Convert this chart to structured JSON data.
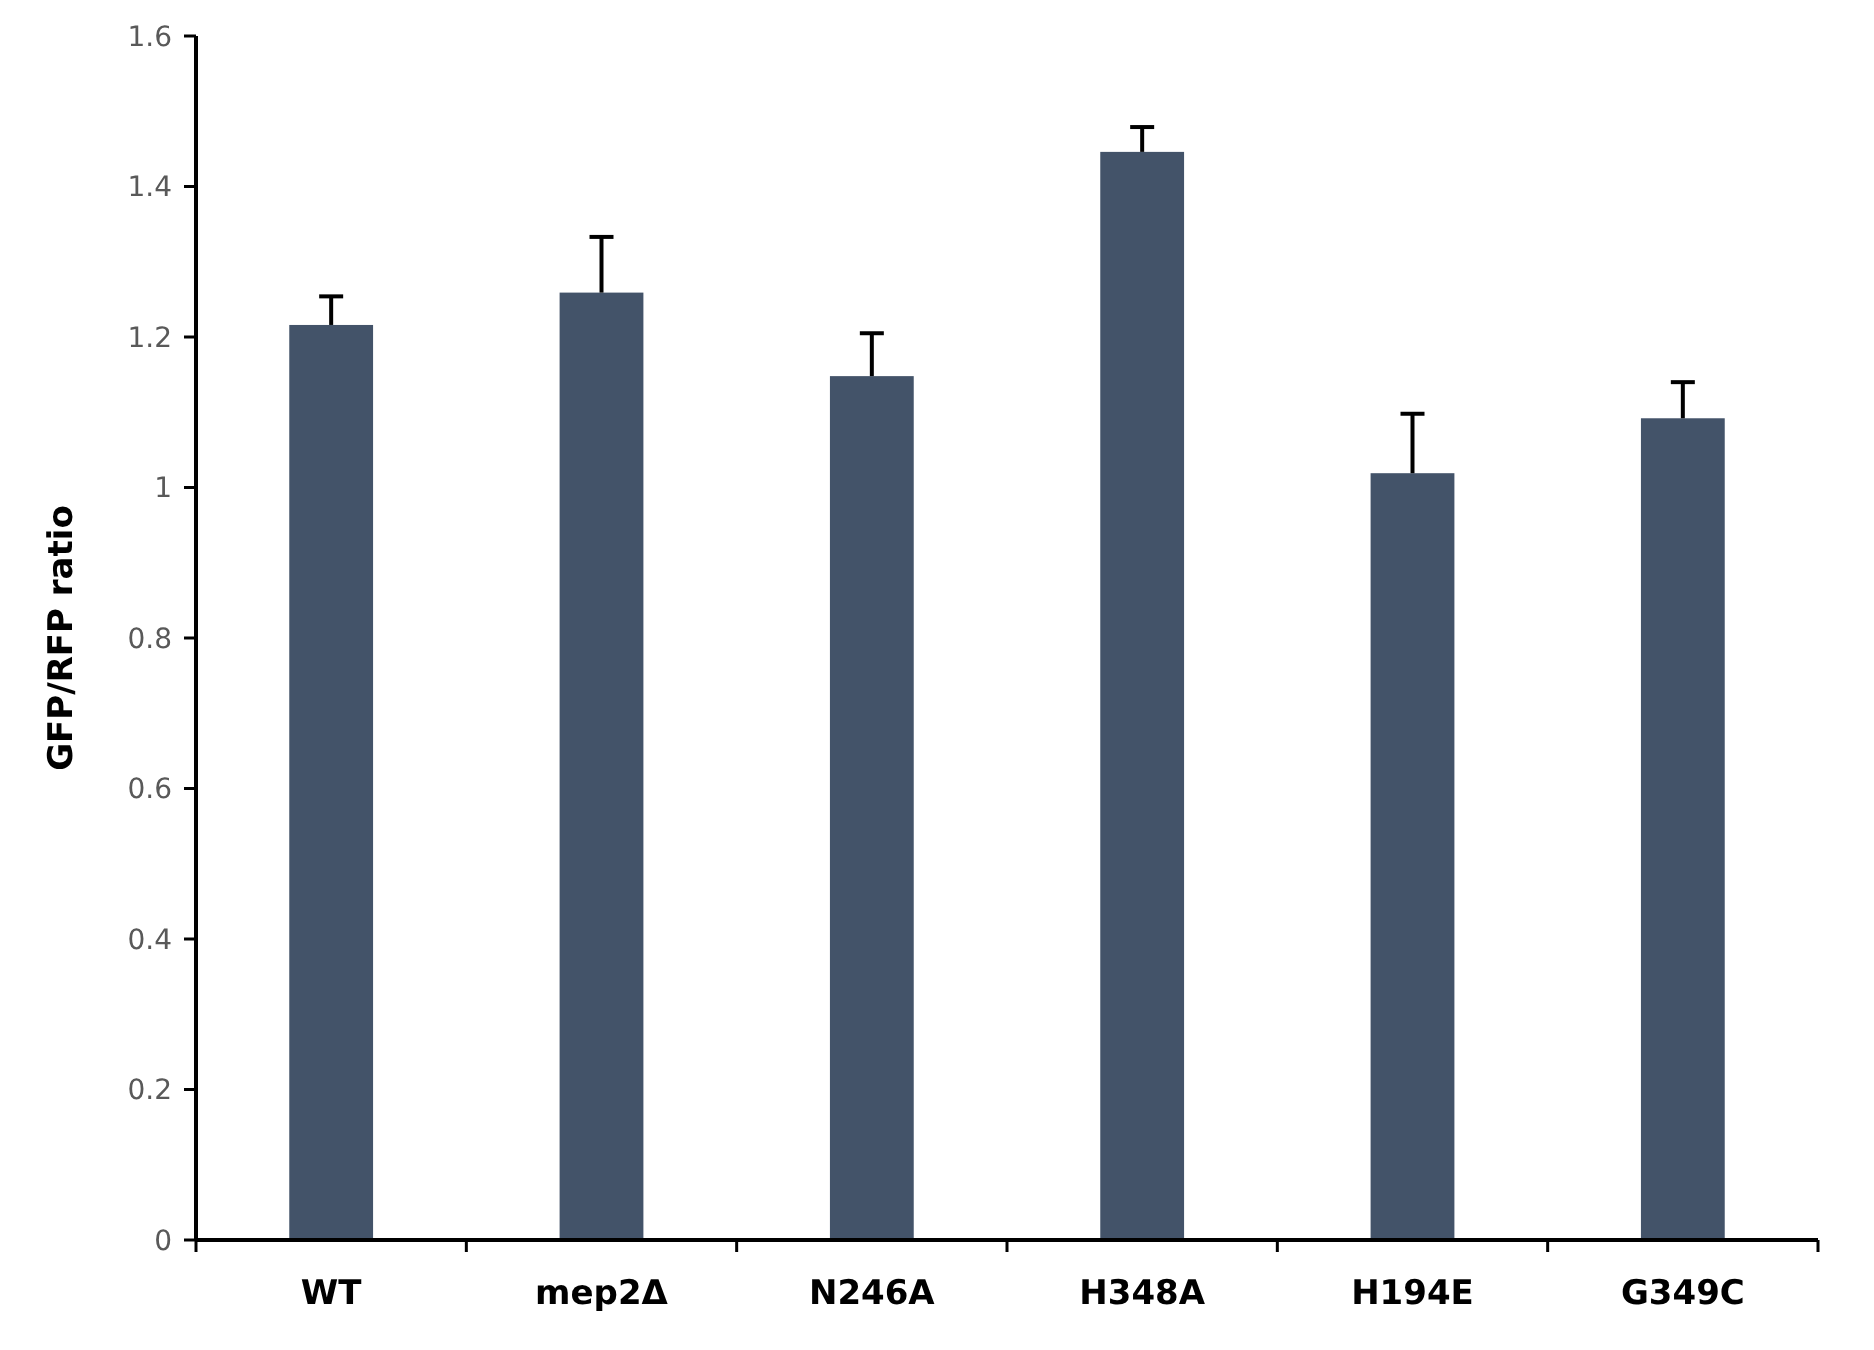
{
  "chart_data": {
    "type": "bar",
    "ylabel": "GFP/RFP ratio",
    "categories": [
      "WT",
      "mep2Δ",
      "N246A",
      "H348A",
      "H194E",
      "G349C"
    ],
    "values": [
      1.216,
      1.259,
      1.148,
      1.446,
      1.019,
      1.092
    ],
    "errors": [
      0.038,
      0.074,
      0.057,
      0.033,
      0.079,
      0.048
    ],
    "color": "#435369",
    "ylim": [
      0,
      1.6
    ],
    "yticks": [
      0,
      0.2,
      0.4,
      0.6,
      0.8,
      1,
      1.2,
      1.4,
      1.6
    ],
    "grid": false
  }
}
